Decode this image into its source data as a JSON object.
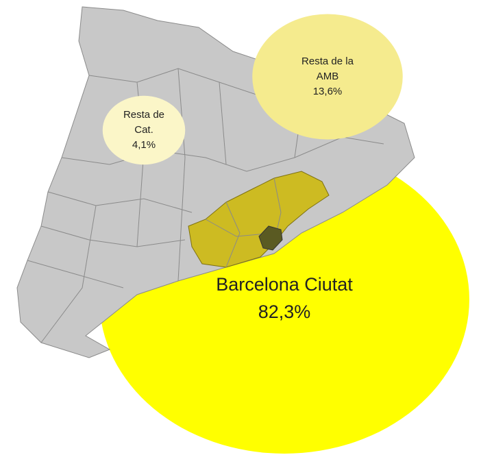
{
  "bubbles": [
    {
      "label_lines": [
        "Resta de",
        "Cat."
      ],
      "value": 4.1,
      "value_label": "4,1%"
    },
    {
      "label_lines": [
        "Resta de la",
        "AMB"
      ],
      "value": 13.6,
      "value_label": "13,6%"
    },
    {
      "label_lines": [
        "Barcelona Ciutat"
      ],
      "value": 82.3,
      "value_label": "82,3%"
    }
  ]
}
